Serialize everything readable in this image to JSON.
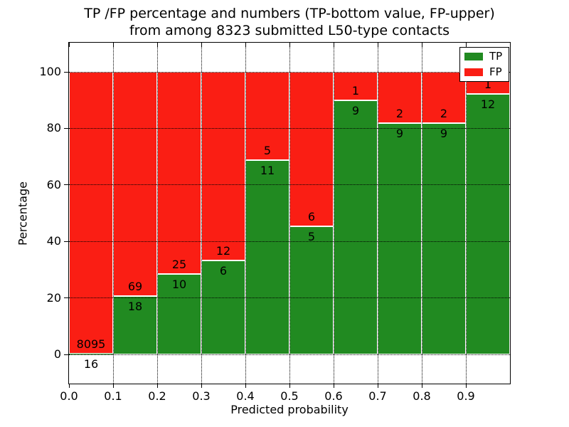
{
  "figure": {
    "title_line1": "TP /FP percentage and numbers (TP-bottom value, FP-upper)",
    "title_line2": "from among 8323 submitted L50-type contacts"
  },
  "axes": {
    "x_label": "Predicted probability",
    "y_label": "Percentage",
    "x_ticks": [
      "0.0",
      "0.1",
      "0.2",
      "0.3",
      "0.4",
      "0.5",
      "0.6",
      "0.7",
      "0.8",
      "0.9"
    ],
    "y_ticks": [
      "0",
      "20",
      "40",
      "60",
      "80",
      "100"
    ]
  },
  "legend": {
    "entries": [
      {
        "label": "TP",
        "color": "#218a21"
      },
      {
        "label": "FP",
        "color": "#fa1e14"
      }
    ]
  },
  "chart_data": {
    "type": "bar",
    "stacked": true,
    "title": "TP /FP percentage and numbers (TP-bottom value, FP-upper) from among 8323 submitted L50-type contacts",
    "xlabel": "Predicted probability",
    "ylabel": "Percentage",
    "total_contacts": 8323,
    "bin_width": 0.1,
    "bin_starts": [
      0.0,
      0.1,
      0.2,
      0.3,
      0.4,
      0.5,
      0.6,
      0.7,
      0.8,
      0.9
    ],
    "categories": [
      "0.0",
      "0.1",
      "0.2",
      "0.3",
      "0.4",
      "0.5",
      "0.6",
      "0.7",
      "0.8",
      "0.9"
    ],
    "series": [
      {
        "name": "TP",
        "color": "#218a21",
        "counts": [
          16,
          18,
          10,
          6,
          11,
          5,
          9,
          9,
          9,
          12
        ],
        "percentages": [
          0.2,
          20.7,
          28.6,
          33.3,
          68.8,
          45.5,
          90.0,
          81.8,
          81.8,
          92.3
        ]
      },
      {
        "name": "FP",
        "color": "#fa1e14",
        "counts": [
          8095,
          69,
          25,
          12,
          5,
          6,
          1,
          2,
          2,
          1
        ],
        "percentages": [
          99.8,
          79.3,
          71.4,
          66.7,
          31.2,
          54.5,
          10.0,
          18.2,
          18.2,
          7.7
        ]
      }
    ],
    "xlim": [
      0.0,
      1.0
    ],
    "ylim": [
      -10.8,
      110.3
    ],
    "y_tick_values": [
      0,
      20,
      40,
      60,
      80,
      100
    ],
    "grid": true,
    "grid_style": "dotted",
    "bar_edge_color": "#ffffff",
    "legend_position": "upper right"
  }
}
